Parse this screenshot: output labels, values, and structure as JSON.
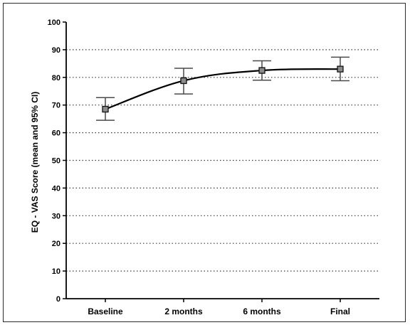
{
  "chart_data": {
    "type": "line",
    "title": "",
    "xlabel": "",
    "ylabel": "EQ - VAS Score (mean and 95% CI)",
    "categories": [
      "Baseline",
      "2 months",
      "6 months",
      "Final"
    ],
    "series": [
      {
        "values": [
          68.5,
          78.8,
          82.5,
          83.0
        ],
        "ci_lower": [
          64.5,
          74.0,
          79.0,
          78.8
        ],
        "ci_upper": [
          72.7,
          83.3,
          86.0,
          87.3
        ]
      }
    ],
    "ylim": [
      0,
      100
    ],
    "yticks": [
      0,
      10,
      20,
      30,
      40,
      50,
      60,
      70,
      80,
      90,
      100
    ],
    "grid": "horizontal-dotted",
    "legend": "none",
    "colors": {
      "line": "#000000",
      "error_bar": "#4a4a4a",
      "marker_fill": "#8c8c8c",
      "grid": "#3a3a3a"
    }
  }
}
